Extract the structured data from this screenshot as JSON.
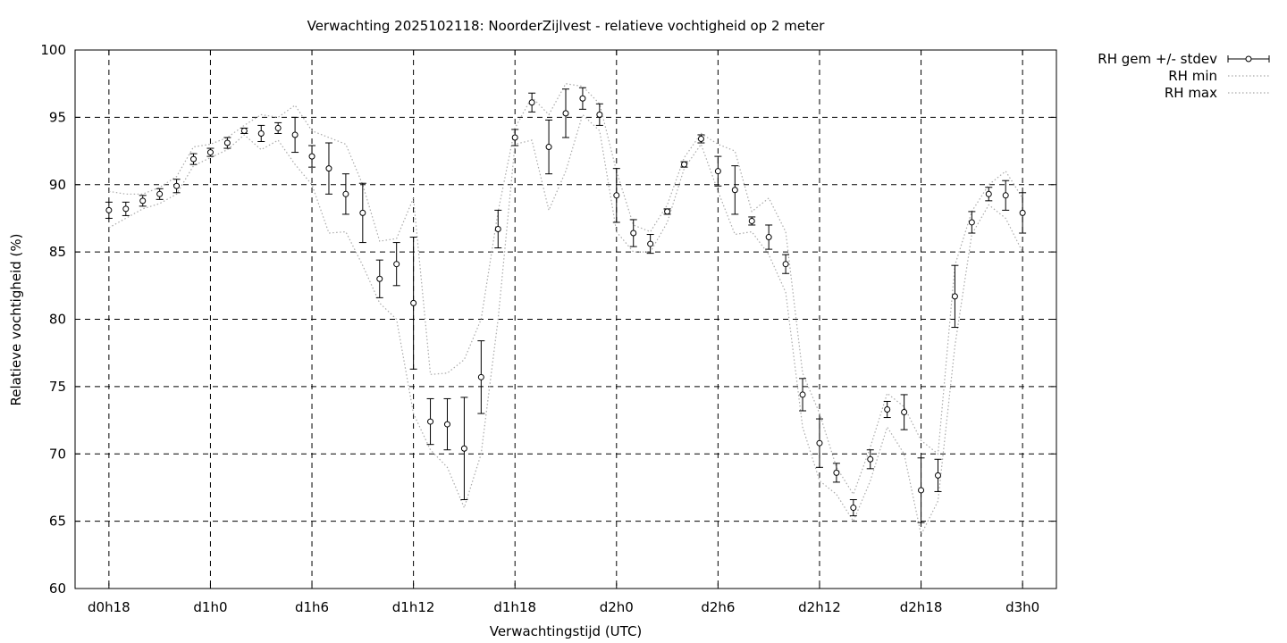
{
  "chart_data": {
    "type": "line",
    "title": "Verwachting 2025102118: NoorderZijlvest - relatieve vochtigheid op 2 meter",
    "xlabel": "Verwachtingstijd (UTC)",
    "ylabel": "Relatieve vochtigheid (%)",
    "ylim": [
      60,
      100
    ],
    "yticks": [
      60,
      65,
      70,
      75,
      80,
      85,
      90,
      95,
      100
    ],
    "xlim": [
      16,
      74
    ],
    "xticks": [
      {
        "x": 18,
        "label": "d0h18"
      },
      {
        "x": 24,
        "label": "d1h0"
      },
      {
        "x": 30,
        "label": "d1h6"
      },
      {
        "x": 36,
        "label": "d1h12"
      },
      {
        "x": 42,
        "label": "d1h18"
      },
      {
        "x": 48,
        "label": "d2h0"
      },
      {
        "x": 54,
        "label": "d2h6"
      },
      {
        "x": 60,
        "label": "d2h12"
      },
      {
        "x": 66,
        "label": "d2h18"
      },
      {
        "x": 72,
        "label": "d3h0"
      }
    ],
    "grid": true,
    "legend_position": "outside-top-right",
    "series": [
      {
        "name": "RH gem +/- stdev",
        "style": "errorbars-points",
        "x": [
          18,
          19,
          20,
          21,
          22,
          23,
          24,
          25,
          26,
          27,
          28,
          29,
          30,
          31,
          32,
          33,
          34,
          35,
          36,
          37,
          38,
          39,
          40,
          41,
          42,
          43,
          44,
          45,
          46,
          47,
          48,
          49,
          50,
          51,
          52,
          53,
          54,
          55,
          56,
          57,
          58,
          59,
          60,
          61,
          62,
          63,
          64,
          65,
          66,
          67,
          68,
          69,
          70,
          71,
          72
        ],
        "values": [
          88.1,
          88.2,
          88.8,
          89.3,
          89.9,
          91.9,
          92.4,
          93.1,
          94.0,
          93.8,
          94.2,
          93.7,
          92.1,
          91.2,
          89.3,
          87.9,
          83.0,
          84.1,
          81.2,
          72.4,
          72.2,
          70.4,
          75.7,
          86.7,
          93.5,
          96.1,
          92.8,
          95.3,
          96.4,
          95.2,
          89.2,
          86.4,
          85.6,
          88.0,
          91.5,
          93.4,
          91.0,
          89.6,
          87.3,
          86.1,
          84.1,
          74.4,
          70.8,
          68.6,
          66.0,
          69.6,
          73.3,
          73.1,
          67.3,
          68.4,
          81.7,
          87.2,
          89.3,
          89.2,
          87.9
        ],
        "stdev": [
          0.6,
          0.5,
          0.4,
          0.4,
          0.5,
          0.4,
          0.3,
          0.4,
          0.2,
          0.6,
          0.4,
          1.3,
          0.8,
          1.9,
          1.5,
          2.2,
          1.4,
          1.6,
          4.9,
          1.7,
          1.9,
          3.8,
          2.7,
          1.4,
          0.6,
          0.7,
          2.0,
          1.8,
          0.8,
          0.8,
          2.0,
          1.0,
          0.7,
          0.2,
          0.2,
          0.3,
          1.1,
          1.8,
          0.3,
          0.9,
          0.7,
          1.2,
          1.8,
          0.7,
          0.6,
          0.7,
          0.6,
          1.3,
          2.4,
          1.2,
          2.3,
          0.8,
          0.5,
          1.1,
          1.5
        ]
      },
      {
        "name": "RH min",
        "style": "dotted",
        "x": [
          18,
          19,
          20,
          21,
          22,
          23,
          24,
          25,
          26,
          27,
          28,
          29,
          30,
          31,
          32,
          33,
          34,
          35,
          36,
          37,
          38,
          39,
          40,
          41,
          42,
          43,
          44,
          45,
          46,
          47,
          48,
          49,
          50,
          51,
          52,
          53,
          54,
          55,
          56,
          57,
          58,
          59,
          60,
          61,
          62,
          63,
          64,
          65,
          66,
          67,
          68,
          69,
          70,
          71,
          72
        ],
        "values": [
          86.8,
          87.5,
          88.2,
          88.6,
          89.3,
          91.4,
          92.0,
          92.6,
          93.7,
          92.6,
          93.3,
          91.5,
          90.0,
          86.4,
          86.5,
          84.0,
          81.2,
          80.0,
          73.0,
          70.3,
          69.0,
          66.0,
          70.0,
          80.0,
          93.0,
          93.3,
          88.1,
          91.0,
          95.2,
          94.0,
          86.5,
          85.0,
          85.0,
          87.2,
          91.2,
          93.0,
          89.5,
          86.3,
          86.5,
          84.8,
          82.0,
          72.0,
          68.0,
          67.0,
          65.0,
          68.0,
          72.0,
          70.0,
          64.0,
          66.5,
          78.0,
          86.3,
          88.5,
          87.5,
          85.0
        ]
      },
      {
        "name": "RH max",
        "style": "dotted",
        "x": [
          18,
          19,
          20,
          21,
          22,
          23,
          24,
          25,
          26,
          27,
          28,
          29,
          30,
          31,
          32,
          33,
          34,
          35,
          36,
          37,
          38,
          39,
          40,
          41,
          42,
          43,
          44,
          45,
          46,
          47,
          48,
          49,
          50,
          51,
          52,
          53,
          54,
          55,
          56,
          57,
          58,
          59,
          60,
          61,
          62,
          63,
          64,
          65,
          66,
          67,
          68,
          69,
          70,
          71,
          72
        ],
        "values": [
          89.5,
          89.3,
          89.3,
          89.8,
          90.6,
          92.8,
          93.0,
          93.5,
          94.4,
          95.2,
          95.0,
          95.9,
          94.0,
          93.5,
          93.0,
          90.0,
          85.8,
          86.0,
          89.0,
          75.9,
          76.0,
          77.0,
          80.0,
          88.0,
          94.2,
          96.5,
          95.2,
          97.5,
          97.3,
          96.0,
          91.0,
          87.0,
          86.5,
          88.5,
          92.0,
          93.8,
          93.0,
          92.5,
          88.0,
          89.0,
          86.5,
          76.0,
          73.0,
          69.0,
          67.0,
          70.5,
          74.5,
          73.5,
          71.0,
          70.0,
          84.0,
          88.0,
          90.0,
          91.0,
          89.0
        ]
      }
    ]
  }
}
